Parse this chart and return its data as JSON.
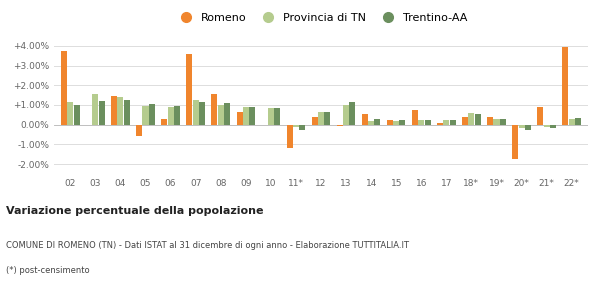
{
  "categories": [
    "02",
    "03",
    "04",
    "05",
    "06",
    "07",
    "08",
    "09",
    "10",
    "11*",
    "12",
    "13",
    "14",
    "15",
    "16",
    "17",
    "18*",
    "19*",
    "20*",
    "21*",
    "22*"
  ],
  "romeno": [
    3.75,
    0.0,
    1.45,
    -0.55,
    0.3,
    3.6,
    1.55,
    0.65,
    0.0,
    -1.2,
    0.4,
    -0.05,
    0.55,
    0.25,
    0.75,
    0.1,
    0.4,
    0.4,
    -1.75,
    0.9,
    3.95
  ],
  "provincia": [
    1.15,
    1.55,
    1.4,
    0.95,
    0.9,
    1.25,
    1.0,
    0.9,
    0.85,
    -0.1,
    0.65,
    1.0,
    0.2,
    0.2,
    0.25,
    0.25,
    0.6,
    0.3,
    -0.15,
    -0.1,
    0.3
  ],
  "trentino": [
    1.0,
    1.2,
    1.25,
    1.05,
    0.95,
    1.15,
    1.1,
    0.9,
    0.85,
    -0.25,
    0.65,
    1.15,
    0.3,
    0.25,
    0.25,
    0.25,
    0.55,
    0.3,
    -0.25,
    -0.15,
    0.35
  ],
  "color_romeno": "#f0852d",
  "color_provincia": "#b5cc8e",
  "color_trentino": "#6b8f5e",
  "title_bold": "Variazione percentuale della popolazione",
  "subtitle": "COMUNE DI ROMENO (TN) - Dati ISTAT al 31 dicembre di ogni anno - Elaborazione TUTTITALIA.IT",
  "footnote": "(*) post-censimento",
  "legend_labels": [
    "Romeno",
    "Provincia di TN",
    "Trentino-AA"
  ],
  "ylim": [
    -2.5,
    4.5
  ],
  "yticks": [
    -2.0,
    -1.0,
    0.0,
    1.0,
    2.0,
    3.0,
    4.0
  ],
  "ytick_labels": [
    "-2.00%",
    "-1.00%",
    "0.00%",
    "+1.00%",
    "+2.00%",
    "+3.00%",
    "+4.00%"
  ],
  "bg_color": "#ffffff",
  "grid_color": "#dddddd"
}
